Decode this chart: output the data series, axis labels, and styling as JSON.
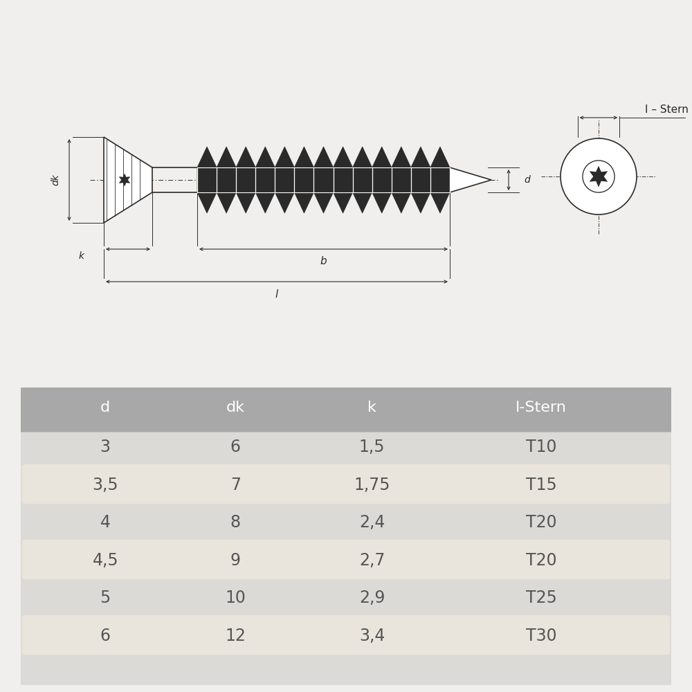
{
  "bg_color": "#f0efed",
  "diagram_bg": "#ffffff",
  "table_header_color": "#a8a8a8",
  "table_row_alt_color": "#eae5dc",
  "table_text_color": "#555555",
  "header_cols": [
    "d",
    "dk",
    "k",
    "l-Stern"
  ],
  "rows": [
    [
      "3",
      "6",
      "1,5",
      "T10"
    ],
    [
      "3,5",
      "7",
      "1,75",
      "T15"
    ],
    [
      "4",
      "8",
      "2,4",
      "T20"
    ],
    [
      "4,5",
      "9",
      "2,7",
      "T20"
    ],
    [
      "5",
      "10",
      "2,9",
      "T25"
    ],
    [
      "6",
      "12",
      "3,4",
      "T30"
    ]
  ],
  "line_color": "#2a2a2a",
  "dim_color": "#2a2a2a"
}
